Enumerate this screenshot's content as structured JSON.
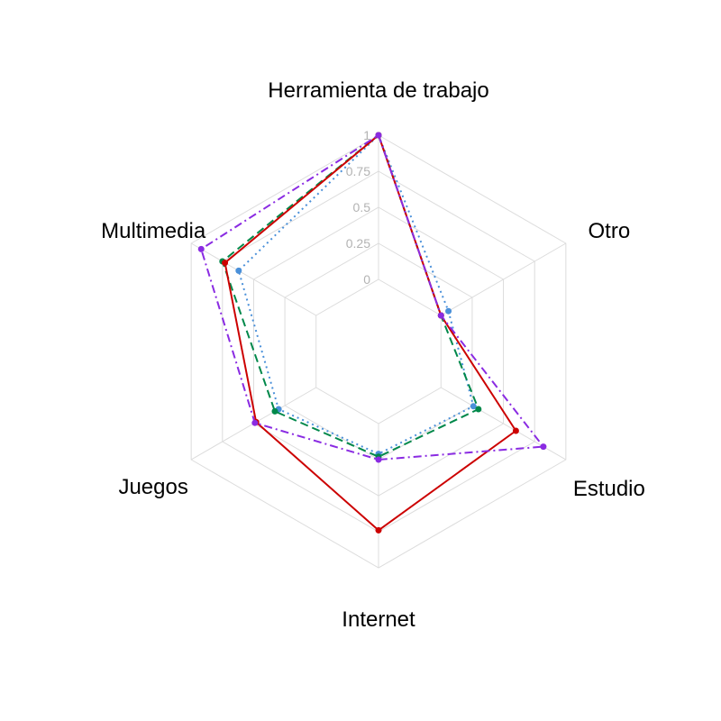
{
  "chart_data": {
    "type": "radar",
    "axes": [
      "Herramienta de trabajo",
      "Otro",
      "Estudio",
      "Internet",
      "Juegos",
      "Multimedia"
    ],
    "radial_ticks": [
      "0",
      "0.25",
      "0.5",
      "0.75",
      "1"
    ],
    "rlim": [
      -0.5,
      1
    ],
    "grid": true,
    "series": [
      {
        "values": [
          1,
          0.06,
          0.26,
          0.21,
          0.3,
          0.62
        ],
        "color": "#4a90d9",
        "dash": "dotted"
      },
      {
        "values": [
          1,
          0.0,
          0.3,
          0.23,
          0.33,
          0.75
        ],
        "color": "#00884a",
        "dash": "dashed"
      },
      {
        "values": [
          1,
          0.0,
          0.6,
          0.74,
          0.48,
          0.73
        ],
        "color": "#cc0000",
        "dash": "solid"
      },
      {
        "values": [
          1,
          0.0,
          0.82,
          0.25,
          0.49,
          0.92
        ],
        "color": "#8a2be2",
        "dash": "dashdot"
      }
    ]
  }
}
